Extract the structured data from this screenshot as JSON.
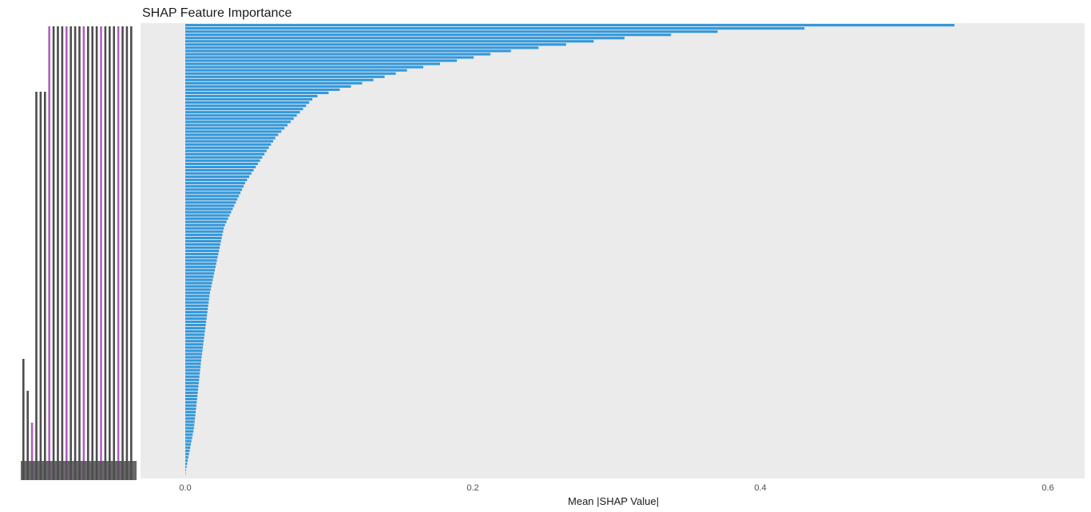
{
  "chart_data": {
    "type": "bar",
    "orientation": "horizontal",
    "title": "SHAP Feature Importance",
    "xlabel": "Mean |SHAP Value|",
    "ylabel": "",
    "xlim": [
      0,
      0.62
    ],
    "x_ticks": [
      "0.0",
      "0.2",
      "0.4",
      "0.6"
    ],
    "x_tick_values": [
      0.0,
      0.2,
      0.4,
      0.6
    ],
    "grid": false,
    "legend": "none",
    "sort": "descending",
    "n_features": 140,
    "decay_rate": 6.0,
    "values_profile": [
      {
        "rank_fraction": 0.0,
        "value": 0.535
      },
      {
        "rank_fraction": 0.01,
        "value": 0.39
      },
      {
        "rank_fraction": 0.03,
        "value": 0.3
      },
      {
        "rank_fraction": 0.06,
        "value": 0.22
      },
      {
        "rank_fraction": 0.1,
        "value": 0.155
      },
      {
        "rank_fraction": 0.16,
        "value": 0.09
      },
      {
        "rank_fraction": 0.25,
        "value": 0.063
      },
      {
        "rank_fraction": 0.35,
        "value": 0.042
      },
      {
        "rank_fraction": 0.45,
        "value": 0.027
      },
      {
        "rank_fraction": 0.6,
        "value": 0.017
      },
      {
        "rank_fraction": 0.75,
        "value": 0.011
      },
      {
        "rank_fraction": 0.9,
        "value": 0.006
      },
      {
        "rank_fraction": 1.0,
        "value": 0.0
      }
    ],
    "bar_color": "#3498db",
    "panel_color": "#ebebeb",
    "label_color": "#4d4d4d",
    "label_accent_color": "#b05fc0"
  }
}
